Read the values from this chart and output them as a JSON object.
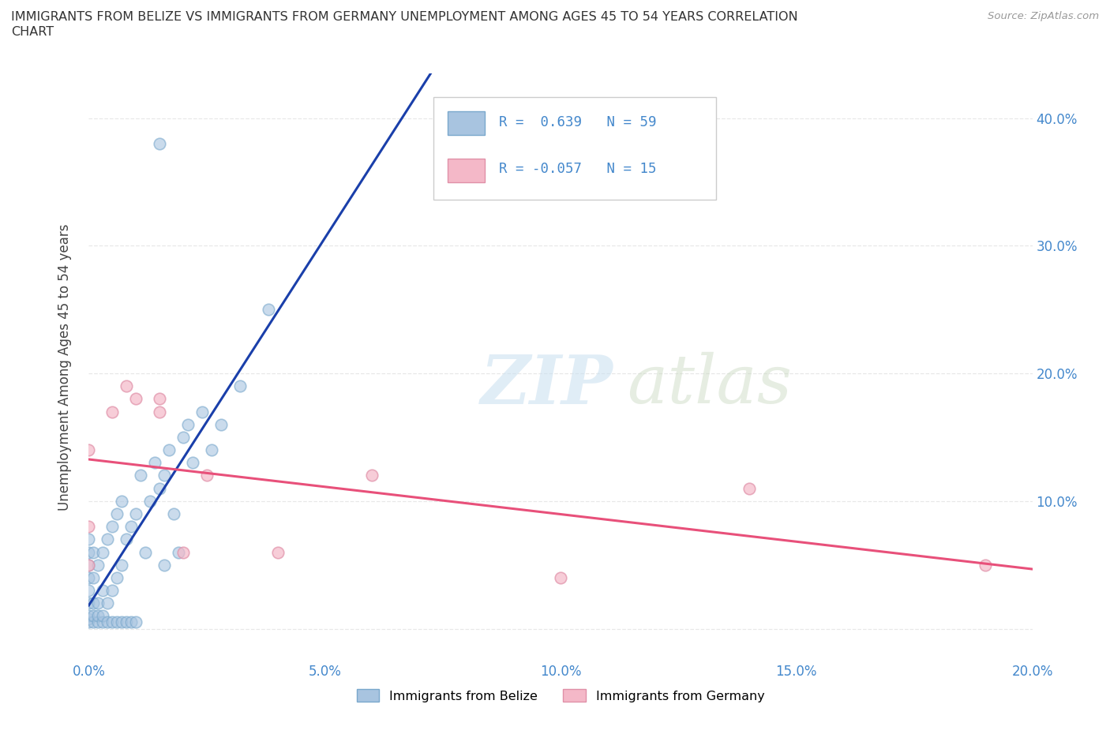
{
  "title_line1": "IMMIGRANTS FROM BELIZE VS IMMIGRANTS FROM GERMANY UNEMPLOYMENT AMONG AGES 45 TO 54 YEARS CORRELATION",
  "title_line2": "CHART",
  "source_text": "Source: ZipAtlas.com",
  "ylabel": "Unemployment Among Ages 45 to 54 years",
  "xlim": [
    0.0,
    0.2
  ],
  "ylim": [
    -0.025,
    0.435
  ],
  "xticks": [
    0.0,
    0.05,
    0.1,
    0.15,
    0.2
  ],
  "yticks": [
    0.0,
    0.1,
    0.2,
    0.3,
    0.4
  ],
  "xticklabels": [
    "0.0%",
    "5.0%",
    "10.0%",
    "15.0%",
    "20.0%"
  ],
  "yticklabels_right": [
    "",
    "10.0%",
    "20.0%",
    "30.0%",
    "40.0%"
  ],
  "belize_color": "#a8c4e0",
  "belize_edge_color": "#7aa8cc",
  "germany_color": "#f4b8c8",
  "germany_edge_color": "#e090a8",
  "belize_line_color": "#1a3faa",
  "germany_line_color": "#e8507a",
  "R_belize": 0.639,
  "N_belize": 59,
  "R_germany": -0.057,
  "N_germany": 15,
  "legend_label_belize": "Immigrants from Belize",
  "legend_label_germany": "Immigrants from Germany",
  "watermark_zip": "ZIP",
  "watermark_atlas": "atlas",
  "grid_color": "#e8e8e8",
  "bg_color": "#ffffff",
  "tick_color": "#4488cc",
  "belize_x": [
    0.0,
    0.0,
    0.0,
    0.0,
    0.0,
    0.0,
    0.0,
    0.0,
    0.0,
    0.001,
    0.001,
    0.001,
    0.001,
    0.001,
    0.002,
    0.002,
    0.002,
    0.002,
    0.003,
    0.003,
    0.003,
    0.003,
    0.004,
    0.004,
    0.004,
    0.005,
    0.005,
    0.005,
    0.006,
    0.006,
    0.006,
    0.007,
    0.007,
    0.007,
    0.008,
    0.008,
    0.009,
    0.009,
    0.01,
    0.01,
    0.011,
    0.012,
    0.013,
    0.014,
    0.015,
    0.016,
    0.016,
    0.017,
    0.018,
    0.019,
    0.02,
    0.021,
    0.022,
    0.024,
    0.026,
    0.028,
    0.032,
    0.038,
    0.015
  ],
  "belize_y": [
    0.005,
    0.008,
    0.01,
    0.02,
    0.03,
    0.04,
    0.05,
    0.06,
    0.07,
    0.005,
    0.01,
    0.02,
    0.04,
    0.06,
    0.005,
    0.01,
    0.02,
    0.05,
    0.005,
    0.01,
    0.03,
    0.06,
    0.005,
    0.02,
    0.07,
    0.005,
    0.03,
    0.08,
    0.005,
    0.04,
    0.09,
    0.005,
    0.05,
    0.1,
    0.005,
    0.07,
    0.005,
    0.08,
    0.005,
    0.09,
    0.12,
    0.06,
    0.1,
    0.13,
    0.11,
    0.12,
    0.05,
    0.14,
    0.09,
    0.06,
    0.15,
    0.16,
    0.13,
    0.17,
    0.14,
    0.16,
    0.19,
    0.25,
    0.38
  ],
  "germany_x": [
    0.0,
    0.0,
    0.0,
    0.005,
    0.008,
    0.01,
    0.015,
    0.015,
    0.02,
    0.025,
    0.04,
    0.06,
    0.1,
    0.14,
    0.19
  ],
  "germany_y": [
    0.05,
    0.08,
    0.14,
    0.17,
    0.19,
    0.18,
    0.17,
    0.18,
    0.06,
    0.12,
    0.06,
    0.12,
    0.04,
    0.11,
    0.05
  ]
}
